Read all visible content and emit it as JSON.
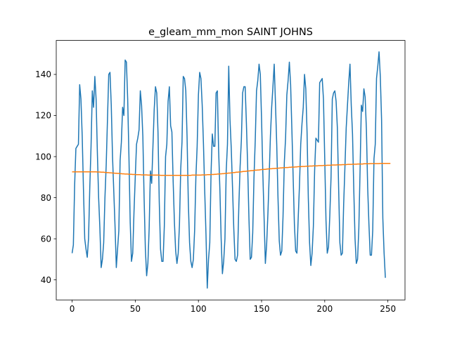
{
  "chart_data": {
    "type": "line",
    "title": "e_gleam_mm_mon SAINT JOHNS",
    "xlabel": "",
    "ylabel": "",
    "xlim": [
      -12.55,
      263.55
    ],
    "ylim": [
      30.24,
      156.54
    ],
    "xticks": [
      0,
      50,
      100,
      150,
      200,
      250
    ],
    "yticks": [
      40,
      60,
      80,
      100,
      120,
      140
    ],
    "grid": false,
    "legend": "none",
    "colors": {
      "series_1": "#1f77b4",
      "series_2": "#ff7f0e"
    },
    "series": [
      {
        "x_start": 0,
        "x_step": 1,
        "values": [
          53,
          57,
          86,
          104,
          105,
          106,
          135,
          128,
          110,
          84,
          60,
          55,
          51,
          60,
          85,
          105,
          132,
          124,
          139,
          128,
          102,
          80,
          65,
          46,
          50,
          58,
          80,
          96,
          118,
          140,
          141,
          125,
          100,
          83,
          66,
          46,
          55,
          64,
          98,
          107,
          124,
          120,
          147,
          146,
          128,
          100,
          68,
          49,
          53,
          73,
          90,
          106,
          109,
          113,
          132,
          125,
          110,
          80,
          55,
          42,
          48,
          65,
          93,
          87,
          105,
          123,
          134,
          131,
          112,
          78,
          55,
          49,
          49,
          66,
          100,
          106,
          127,
          134,
          115,
          112,
          88,
          68,
          54,
          48,
          53,
          67,
          94,
          107,
          139,
          138,
          132,
          110,
          78,
          58,
          49,
          46,
          50,
          64,
          90,
          105,
          130,
          141,
          138,
          125,
          106,
          83,
          62,
          36,
          50,
          58,
          92,
          111,
          105,
          105,
          131,
          132,
          103,
          84,
          60,
          43,
          49,
          60,
          93,
          106,
          144,
          118,
          104,
          85,
          65,
          50,
          49,
          52,
          76,
          95,
          108,
          131,
          134,
          134,
          116,
          95,
          70,
          50,
          51,
          63,
          90,
          108,
          132,
          137,
          145,
          140,
          118,
          92,
          70,
          48,
          57,
          72,
          90,
          110,
          124,
          134,
          145,
          126,
          106,
          80,
          59,
          52,
          54,
          71,
          97,
          109,
          130,
          137,
          146,
          135,
          113,
          90,
          67,
          54,
          53,
          70,
          86,
          106,
          116,
          124,
          140,
          133,
          112,
          80,
          58,
          47,
          53,
          66,
          93,
          109,
          108,
          107,
          136,
          137,
          138,
          128,
          99,
          69,
          53,
          56,
          71,
          90,
          128,
          131,
          132,
          127,
          114,
          85,
          58,
          52,
          53,
          77,
          95,
          114,
          125,
          136,
          145,
          125,
          111,
          84,
          60,
          48,
          50,
          65,
          94,
          125,
          122,
          133,
          129,
          113,
          85,
          67,
          52,
          52,
          64,
          99,
          106,
          138,
          144,
          151,
          139,
          118,
          70,
          53,
          41
        ]
      },
      {
        "x_start": 0,
        "x_step": 1,
        "values": [
          92.6,
          92.6,
          92.6,
          92.6,
          92.6,
          92.6,
          92.6,
          92.6,
          92.6,
          92.6,
          92.6,
          92.6,
          92.6,
          92.6,
          92.6,
          92.6,
          92.6,
          92.6,
          92.6,
          92.6,
          92.5,
          92.5,
          92.5,
          92.4,
          92.4,
          92.4,
          92.3,
          92.3,
          92.2,
          92.2,
          92.1,
          92.1,
          92.0,
          92.0,
          91.9,
          91.9,
          91.8,
          91.8,
          91.7,
          91.7,
          91.6,
          91.6,
          91.5,
          91.5,
          91.5,
          91.4,
          91.4,
          91.4,
          91.3,
          91.3,
          91.3,
          91.2,
          91.2,
          91.2,
          91.2,
          91.1,
          91.1,
          91.1,
          91.1,
          91.1,
          91.0,
          91.0,
          91.0,
          91.0,
          91.0,
          91.0,
          91.0,
          91.0,
          91.0,
          91.0,
          90.9,
          90.9,
          90.9,
          90.9,
          90.9,
          90.9,
          90.9,
          90.9,
          90.9,
          90.9,
          90.9,
          90.9,
          90.9,
          90.9,
          90.9,
          90.9,
          90.9,
          90.9,
          90.9,
          90.9,
          90.9,
          90.9,
          90.9,
          90.9,
          90.9,
          91.0,
          91.0,
          91.0,
          91.0,
          91.0,
          91.0,
          91.0,
          91.0,
          91.1,
          91.1,
          91.1,
          91.1,
          91.2,
          91.2,
          91.2,
          91.3,
          91.3,
          91.3,
          91.4,
          91.4,
          91.5,
          91.5,
          91.6,
          91.6,
          91.7,
          91.7,
          91.8,
          91.8,
          91.9,
          92.0,
          92.0,
          92.1,
          92.2,
          92.2,
          92.3,
          92.4,
          92.4,
          92.5,
          92.6,
          92.6,
          92.7,
          92.8,
          92.8,
          92.9,
          93.0,
          93.0,
          93.1,
          93.2,
          93.2,
          93.3,
          93.4,
          93.4,
          93.5,
          93.5,
          93.6,
          93.7,
          93.7,
          93.8,
          93.8,
          93.9,
          94.0,
          94.0,
          94.1,
          94.1,
          94.2,
          94.2,
          94.3,
          94.3,
          94.4,
          94.4,
          94.5,
          94.5,
          94.6,
          94.6,
          94.7,
          94.7,
          94.7,
          94.8,
          94.8,
          94.9,
          94.9,
          94.9,
          95.0,
          95.0,
          95.1,
          95.1,
          95.1,
          95.2,
          95.2,
          95.2,
          95.3,
          95.3,
          95.3,
          95.4,
          95.4,
          95.4,
          95.5,
          95.5,
          95.5,
          95.5,
          95.6,
          95.6,
          95.6,
          95.6,
          95.7,
          95.7,
          95.7,
          95.8,
          95.8,
          95.8,
          95.8,
          95.9,
          95.9,
          95.9,
          95.9,
          96.0,
          96.0,
          96.0,
          96.0,
          96.1,
          96.1,
          96.1,
          96.1,
          96.2,
          96.2,
          96.2,
          96.2,
          96.3,
          96.3,
          96.3,
          96.3,
          96.4,
          96.4,
          96.4,
          96.4,
          96.4,
          96.5,
          96.5,
          96.5,
          96.5,
          96.5,
          96.6,
          96.6,
          96.6,
          96.6,
          96.6,
          96.6,
          96.6,
          96.6,
          96.7,
          96.7,
          96.7,
          96.7,
          96.7,
          96.7,
          96.7,
          96.7,
          96.7
        ]
      }
    ]
  }
}
